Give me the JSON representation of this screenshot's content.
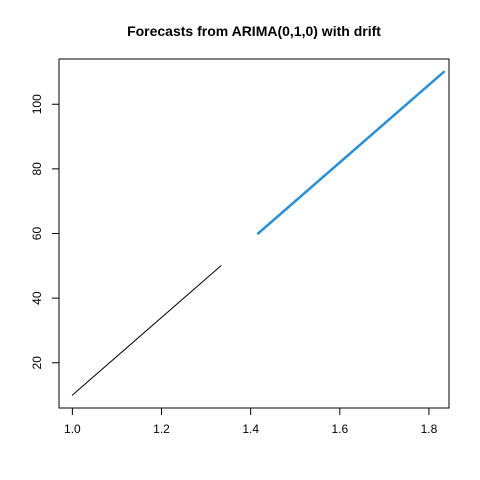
{
  "chart_data": {
    "type": "line",
    "title": "Forecasts from ARIMA(0,1,0) with drift",
    "xlabel": "",
    "ylabel": "",
    "xlim": [
      0.97,
      1.845
    ],
    "ylim": [
      6,
      114
    ],
    "x_ticks": [
      1.0,
      1.2,
      1.4,
      1.6,
      1.8
    ],
    "x_tick_labels": [
      "1.0",
      "1.2",
      "1.4",
      "1.6",
      "1.8"
    ],
    "y_ticks": [
      20,
      40,
      60,
      80,
      100
    ],
    "y_tick_labels": [
      "20",
      "40",
      "60",
      "80",
      "100"
    ],
    "grid": false,
    "legend": "none",
    "series": [
      {
        "role": "observed",
        "color": "#000000",
        "x": [
          1.0,
          1.3333
        ],
        "y": [
          10,
          50
        ]
      },
      {
        "role": "forecast",
        "color": "#2b8fd6",
        "x": [
          1.4167,
          1.8333
        ],
        "y": [
          60,
          110
        ]
      }
    ]
  }
}
